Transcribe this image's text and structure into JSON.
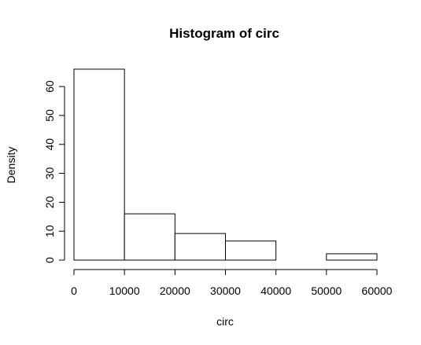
{
  "chart_data": {
    "type": "bar",
    "title": "Histogram of circ",
    "xlabel": "circ",
    "ylabel": "Density",
    "bins": [
      {
        "start": 0,
        "end": 10000,
        "value": 66
      },
      {
        "start": 10000,
        "end": 20000,
        "value": 16
      },
      {
        "start": 20000,
        "end": 30000,
        "value": 9.2
      },
      {
        "start": 30000,
        "end": 40000,
        "value": 6.6
      },
      {
        "start": 40000,
        "end": 50000,
        "value": 0
      },
      {
        "start": 50000,
        "end": 60000,
        "value": 2.2
      }
    ],
    "xlim": [
      0,
      60000
    ],
    "ylim": [
      0,
      66
    ],
    "x_ticks": [
      0,
      10000,
      20000,
      30000,
      40000,
      50000,
      60000
    ],
    "y_ticks": [
      0,
      10,
      20,
      30,
      40,
      50,
      60
    ],
    "grid": false,
    "legend": "none"
  }
}
